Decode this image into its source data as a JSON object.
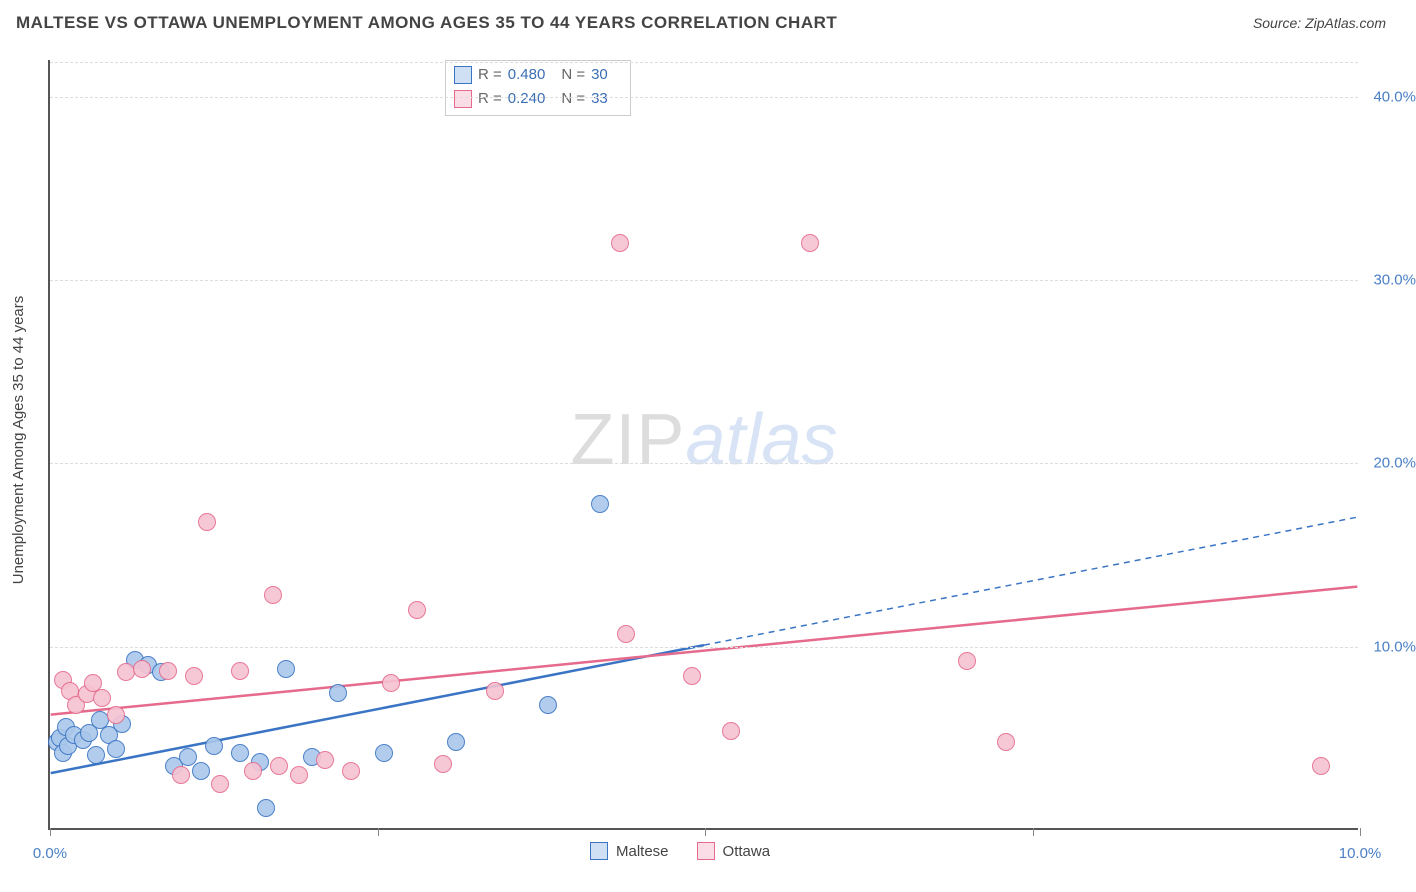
{
  "chart": {
    "type": "scatter",
    "title": "MALTESE VS OTTAWA UNEMPLOYMENT AMONG AGES 35 TO 44 YEARS CORRELATION CHART",
    "source": "Source: ZipAtlas.com",
    "y_axis_label": "Unemployment Among Ages 35 to 44 years",
    "watermark_a": "ZIP",
    "watermark_b": "atlas",
    "background_color": "#ffffff",
    "grid_color": "#dddddd",
    "axis_color": "#555555",
    "tick_label_color": "#4a7fc5",
    "font_family": "Arial",
    "title_fontsize": 17,
    "tick_fontsize": 15,
    "xlim": [
      0,
      10
    ],
    "ylim": [
      0,
      42
    ],
    "x_ticks": [
      0,
      2.5,
      5,
      7.5,
      10
    ],
    "x_tick_labels": [
      "0.0%",
      "",
      "",
      "",
      "10.0%"
    ],
    "y_ticks": [
      10,
      20,
      30,
      40
    ],
    "y_tick_labels": [
      "10.0%",
      "20.0%",
      "30.0%",
      "40.0%"
    ],
    "marker_radius": 9,
    "marker_stroke_width": 1.5,
    "marker_fill_opacity": 0.18,
    "series": [
      {
        "name": "Maltese",
        "stroke": "#3a74c4",
        "fill": "#a9c7ea",
        "trend_style": "solid",
        "trend_width": 2.5,
        "trend_solid_end_x": 5.0,
        "r_value": "0.480",
        "n_value": "30",
        "points": [
          [
            0.05,
            4.8
          ],
          [
            0.08,
            5.0
          ],
          [
            0.1,
            4.2
          ],
          [
            0.12,
            5.6
          ],
          [
            0.14,
            4.6
          ],
          [
            0.18,
            5.2
          ],
          [
            0.25,
            4.9
          ],
          [
            0.3,
            5.3
          ],
          [
            0.35,
            4.1
          ],
          [
            0.38,
            6.0
          ],
          [
            0.45,
            5.2
          ],
          [
            0.5,
            4.4
          ],
          [
            0.55,
            5.8
          ],
          [
            0.65,
            9.3
          ],
          [
            0.75,
            9.0
          ],
          [
            0.85,
            8.6
          ],
          [
            0.95,
            3.5
          ],
          [
            1.05,
            4.0
          ],
          [
            1.15,
            3.2
          ],
          [
            1.25,
            4.6
          ],
          [
            1.45,
            4.2
          ],
          [
            1.6,
            3.7
          ],
          [
            1.65,
            1.2
          ],
          [
            1.8,
            8.8
          ],
          [
            2.0,
            4.0
          ],
          [
            2.2,
            7.5
          ],
          [
            2.55,
            4.2
          ],
          [
            3.1,
            4.8
          ],
          [
            3.8,
            6.8
          ],
          [
            4.2,
            17.8
          ]
        ],
        "trend": {
          "y0": 3.0,
          "y1": 17.0
        }
      },
      {
        "name": "Ottawa",
        "stroke": "#e56a8c",
        "fill": "#f6c3d2",
        "trend_style": "solid",
        "trend_width": 2.5,
        "r_value": "0.240",
        "n_value": "33",
        "points": [
          [
            0.1,
            8.2
          ],
          [
            0.15,
            7.6
          ],
          [
            0.2,
            6.8
          ],
          [
            0.28,
            7.4
          ],
          [
            0.33,
            8.0
          ],
          [
            0.4,
            7.2
          ],
          [
            0.5,
            6.3
          ],
          [
            0.58,
            8.6
          ],
          [
            0.7,
            8.8
          ],
          [
            0.9,
            8.7
          ],
          [
            1.0,
            3.0
          ],
          [
            1.1,
            8.4
          ],
          [
            1.2,
            16.8
          ],
          [
            1.3,
            2.5
          ],
          [
            1.45,
            8.7
          ],
          [
            1.55,
            3.2
          ],
          [
            1.7,
            12.8
          ],
          [
            1.75,
            3.5
          ],
          [
            1.9,
            3.0
          ],
          [
            2.1,
            3.8
          ],
          [
            2.3,
            3.2
          ],
          [
            2.6,
            8.0
          ],
          [
            2.8,
            12.0
          ],
          [
            3.0,
            3.6
          ],
          [
            3.4,
            7.6
          ],
          [
            4.4,
            10.7
          ],
          [
            4.35,
            32.0
          ],
          [
            4.9,
            8.4
          ],
          [
            5.2,
            5.4
          ],
          [
            5.8,
            32.0
          ],
          [
            7.0,
            9.2
          ],
          [
            7.3,
            4.8
          ],
          [
            9.7,
            3.5
          ]
        ],
        "trend": {
          "y0": 6.2,
          "y1": 13.2
        }
      }
    ],
    "stats_box": {
      "rows": [
        {
          "swatch_stroke": "#3a74c4",
          "swatch_fill": "#cfe0f5",
          "r_lbl": "R =",
          "r": "0.480",
          "n_lbl": "N =",
          "n": "30"
        },
        {
          "swatch_stroke": "#e56a8c",
          "swatch_fill": "#fadde6",
          "r_lbl": "R =",
          "r": "0.240",
          "n_lbl": "N =",
          "n": "33"
        }
      ]
    },
    "bottom_legend": [
      {
        "swatch_stroke": "#3a74c4",
        "swatch_fill": "#cfe0f5",
        "label": "Maltese"
      },
      {
        "swatch_stroke": "#e56a8c",
        "swatch_fill": "#fadde6",
        "label": "Ottawa"
      }
    ]
  }
}
